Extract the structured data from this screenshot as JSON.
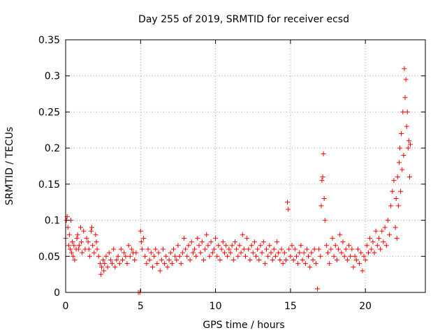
{
  "chart_data": {
    "type": "scatter",
    "title": "Day 255 of 2019, SRMTID for receiver ecsd",
    "xlabel": "GPS time / hours",
    "ylabel": "SRMTID / TECUs",
    "xlim": [
      0,
      24
    ],
    "ylim": [
      0,
      0.35
    ],
    "xticks": [
      0,
      5,
      10,
      15,
      20
    ],
    "yticks": [
      0,
      0.05,
      0.1,
      0.15,
      0.2,
      0.25,
      0.3,
      0.35
    ],
    "xtick_labels": [
      "0",
      "5",
      "10",
      "15",
      "20"
    ],
    "ytick_labels": [
      "0",
      "0.05",
      "0.1",
      "0.15",
      "0.2",
      "0.25",
      "0.3",
      "0.35"
    ],
    "grid": true,
    "marker": "+",
    "colors": {
      "points": "#ff0000",
      "grid": "#a0a0a0",
      "axis": "#000000"
    },
    "series": [
      {
        "name": "SRMTID",
        "points": [
          [
            0.0,
            0.075
          ],
          [
            0.05,
            0.1
          ],
          [
            0.1,
            0.105
          ],
          [
            0.15,
            0.09
          ],
          [
            0.2,
            0.065
          ],
          [
            0.25,
            0.08
          ],
          [
            0.3,
            0.06
          ],
          [
            0.35,
            0.1
          ],
          [
            0.4,
            0.055
          ],
          [
            0.45,
            0.07
          ],
          [
            0.5,
            0.05
          ],
          [
            0.55,
            0.065
          ],
          [
            0.6,
            0.045
          ],
          [
            0.7,
            0.06
          ],
          [
            0.75,
            0.075
          ],
          [
            0.8,
            0.08
          ],
          [
            0.85,
            0.06
          ],
          [
            0.9,
            0.065
          ],
          [
            1.0,
            0.09
          ],
          [
            1.05,
            0.07
          ],
          [
            1.1,
            0.055
          ],
          [
            1.2,
            0.085
          ],
          [
            1.3,
            0.06
          ],
          [
            1.4,
            0.075
          ],
          [
            1.5,
            0.07
          ],
          [
            1.55,
            0.06
          ],
          [
            1.6,
            0.05
          ],
          [
            1.7,
            0.085
          ],
          [
            1.75,
            0.09
          ],
          [
            1.8,
            0.065
          ],
          [
            1.9,
            0.055
          ],
          [
            2.0,
            0.08
          ],
          [
            2.05,
            0.07
          ],
          [
            2.1,
            0.06
          ],
          [
            2.2,
            0.05
          ],
          [
            2.3,
            0.04
          ],
          [
            2.35,
            0.025
          ],
          [
            2.4,
            0.035
          ],
          [
            2.5,
            0.045
          ],
          [
            2.55,
            0.03
          ],
          [
            2.6,
            0.04
          ],
          [
            2.7,
            0.05
          ],
          [
            2.8,
            0.035
          ],
          [
            2.9,
            0.055
          ],
          [
            3.0,
            0.045
          ],
          [
            3.1,
            0.04
          ],
          [
            3.2,
            0.06
          ],
          [
            3.3,
            0.035
          ],
          [
            3.4,
            0.045
          ],
          [
            3.5,
            0.05
          ],
          [
            3.6,
            0.04
          ],
          [
            3.7,
            0.06
          ],
          [
            3.8,
            0.045
          ],
          [
            3.9,
            0.055
          ],
          [
            4.0,
            0.05
          ],
          [
            4.1,
            0.04
          ],
          [
            4.2,
            0.065
          ],
          [
            4.3,
            0.05
          ],
          [
            4.4,
            0.06
          ],
          [
            4.5,
            0.055
          ],
          [
            4.6,
            0.045
          ],
          [
            4.7,
            0.055
          ],
          [
            4.85,
            0.0
          ],
          [
            4.95,
            0.0
          ],
          [
            5.0,
            0.085
          ],
          [
            5.05,
            0.07
          ],
          [
            5.1,
            0.06
          ],
          [
            5.2,
            0.075
          ],
          [
            5.3,
            0.05
          ],
          [
            5.4,
            0.04
          ],
          [
            5.5,
            0.06
          ],
          [
            5.6,
            0.045
          ],
          [
            5.7,
            0.055
          ],
          [
            5.8,
            0.035
          ],
          [
            5.9,
            0.05
          ],
          [
            6.0,
            0.06
          ],
          [
            6.1,
            0.04
          ],
          [
            6.2,
            0.055
          ],
          [
            6.3,
            0.03
          ],
          [
            6.4,
            0.045
          ],
          [
            6.5,
            0.06
          ],
          [
            6.6,
            0.04
          ],
          [
            6.7,
            0.05
          ],
          [
            6.8,
            0.035
          ],
          [
            6.9,
            0.045
          ],
          [
            7.0,
            0.055
          ],
          [
            7.1,
            0.04
          ],
          [
            7.2,
            0.06
          ],
          [
            7.3,
            0.05
          ],
          [
            7.4,
            0.045
          ],
          [
            7.5,
            0.065
          ],
          [
            7.6,
            0.05
          ],
          [
            7.7,
            0.04
          ],
          [
            7.8,
            0.055
          ],
          [
            7.9,
            0.075
          ],
          [
            8.0,
            0.06
          ],
          [
            8.1,
            0.05
          ],
          [
            8.2,
            0.065
          ],
          [
            8.3,
            0.045
          ],
          [
            8.4,
            0.07
          ],
          [
            8.5,
            0.055
          ],
          [
            8.6,
            0.06
          ],
          [
            8.7,
            0.05
          ],
          [
            8.8,
            0.075
          ],
          [
            8.9,
            0.065
          ],
          [
            9.0,
            0.055
          ],
          [
            9.1,
            0.07
          ],
          [
            9.2,
            0.045
          ],
          [
            9.3,
            0.06
          ],
          [
            9.4,
            0.08
          ],
          [
            9.5,
            0.065
          ],
          [
            9.6,
            0.05
          ],
          [
            9.7,
            0.07
          ],
          [
            9.8,
            0.055
          ],
          [
            9.9,
            0.06
          ],
          [
            10.0,
            0.075
          ],
          [
            10.1,
            0.05
          ],
          [
            10.2,
            0.065
          ],
          [
            10.3,
            0.045
          ],
          [
            10.4,
            0.06
          ],
          [
            10.5,
            0.07
          ],
          [
            10.6,
            0.055
          ],
          [
            10.7,
            0.065
          ],
          [
            10.8,
            0.05
          ],
          [
            10.9,
            0.06
          ],
          [
            11.0,
            0.055
          ],
          [
            11.1,
            0.065
          ],
          [
            11.2,
            0.045
          ],
          [
            11.3,
            0.07
          ],
          [
            11.4,
            0.06
          ],
          [
            11.5,
            0.05
          ],
          [
            11.6,
            0.065
          ],
          [
            11.7,
            0.055
          ],
          [
            11.8,
            0.08
          ],
          [
            11.9,
            0.06
          ],
          [
            12.0,
            0.05
          ],
          [
            12.1,
            0.075
          ],
          [
            12.2,
            0.06
          ],
          [
            12.3,
            0.045
          ],
          [
            12.4,
            0.065
          ],
          [
            12.5,
            0.055
          ],
          [
            12.6,
            0.07
          ],
          [
            12.7,
            0.05
          ],
          [
            12.8,
            0.06
          ],
          [
            12.9,
            0.045
          ],
          [
            13.0,
            0.065
          ],
          [
            13.1,
            0.055
          ],
          [
            13.2,
            0.07
          ],
          [
            13.3,
            0.04
          ],
          [
            13.4,
            0.06
          ],
          [
            13.5,
            0.05
          ],
          [
            13.6,
            0.065
          ],
          [
            13.7,
            0.055
          ],
          [
            13.8,
            0.045
          ],
          [
            13.9,
            0.06
          ],
          [
            14.0,
            0.05
          ],
          [
            14.1,
            0.07
          ],
          [
            14.2,
            0.055
          ],
          [
            14.3,
            0.045
          ],
          [
            14.4,
            0.06
          ],
          [
            14.5,
            0.04
          ],
          [
            14.6,
            0.055
          ],
          [
            14.7,
            0.045
          ],
          [
            14.8,
            0.125
          ],
          [
            14.85,
            0.115
          ],
          [
            14.9,
            0.06
          ],
          [
            15.0,
            0.05
          ],
          [
            15.1,
            0.065
          ],
          [
            15.2,
            0.045
          ],
          [
            15.3,
            0.06
          ],
          [
            15.4,
            0.05
          ],
          [
            15.5,
            0.04
          ],
          [
            15.6,
            0.055
          ],
          [
            15.7,
            0.065
          ],
          [
            15.8,
            0.045
          ],
          [
            15.9,
            0.055
          ],
          [
            16.0,
            0.04
          ],
          [
            16.1,
            0.06
          ],
          [
            16.2,
            0.05
          ],
          [
            16.3,
            0.035
          ],
          [
            16.4,
            0.055
          ],
          [
            16.5,
            0.045
          ],
          [
            16.6,
            0.06
          ],
          [
            16.7,
            0.04
          ],
          [
            16.8,
            0.005
          ],
          [
            16.9,
            0.06
          ],
          [
            17.0,
            0.05
          ],
          [
            17.05,
            0.12
          ],
          [
            17.1,
            0.155
          ],
          [
            17.15,
            0.16
          ],
          [
            17.2,
            0.192
          ],
          [
            17.25,
            0.13
          ],
          [
            17.3,
            0.1
          ],
          [
            17.4,
            0.065
          ],
          [
            17.5,
            0.055
          ],
          [
            17.6,
            0.04
          ],
          [
            17.7,
            0.06
          ],
          [
            17.8,
            0.075
          ],
          [
            17.9,
            0.05
          ],
          [
            18.0,
            0.065
          ],
          [
            18.1,
            0.045
          ],
          [
            18.2,
            0.06
          ],
          [
            18.3,
            0.08
          ],
          [
            18.4,
            0.055
          ],
          [
            18.5,
            0.07
          ],
          [
            18.6,
            0.05
          ],
          [
            18.7,
            0.06
          ],
          [
            18.8,
            0.045
          ],
          [
            18.9,
            0.065
          ],
          [
            19.0,
            0.05
          ],
          [
            19.1,
            0.06
          ],
          [
            19.2,
            0.035
          ],
          [
            19.3,
            0.05
          ],
          [
            19.4,
            0.045
          ],
          [
            19.5,
            0.06
          ],
          [
            19.6,
            0.04
          ],
          [
            19.7,
            0.055
          ],
          [
            19.8,
            0.03
          ],
          [
            19.9,
            0.05
          ],
          [
            20.0,
            0.045
          ],
          [
            20.1,
            0.065
          ],
          [
            20.2,
            0.055
          ],
          [
            20.3,
            0.075
          ],
          [
            20.4,
            0.06
          ],
          [
            20.5,
            0.07
          ],
          [
            20.6,
            0.055
          ],
          [
            20.7,
            0.085
          ],
          [
            20.8,
            0.065
          ],
          [
            20.9,
            0.075
          ],
          [
            21.0,
            0.06
          ],
          [
            21.1,
            0.085
          ],
          [
            21.2,
            0.07
          ],
          [
            21.3,
            0.09
          ],
          [
            21.4,
            0.065
          ],
          [
            21.5,
            0.1
          ],
          [
            21.6,
            0.08
          ],
          [
            21.7,
            0.12
          ],
          [
            21.8,
            0.14
          ],
          [
            21.9,
            0.155
          ],
          [
            22.0,
            0.09
          ],
          [
            22.05,
            0.13
          ],
          [
            22.1,
            0.075
          ],
          [
            22.15,
            0.16
          ],
          [
            22.2,
            0.12
          ],
          [
            22.25,
            0.18
          ],
          [
            22.3,
            0.2
          ],
          [
            22.35,
            0.14
          ],
          [
            22.4,
            0.22
          ],
          [
            22.45,
            0.17
          ],
          [
            22.5,
            0.25
          ],
          [
            22.55,
            0.19
          ],
          [
            22.6,
            0.31
          ],
          [
            22.65,
            0.27
          ],
          [
            22.7,
            0.295
          ],
          [
            22.75,
            0.23
          ],
          [
            22.8,
            0.25
          ],
          [
            22.85,
            0.2
          ],
          [
            22.9,
            0.21
          ],
          [
            22.95,
            0.16
          ],
          [
            23.0,
            0.205
          ]
        ]
      }
    ]
  }
}
